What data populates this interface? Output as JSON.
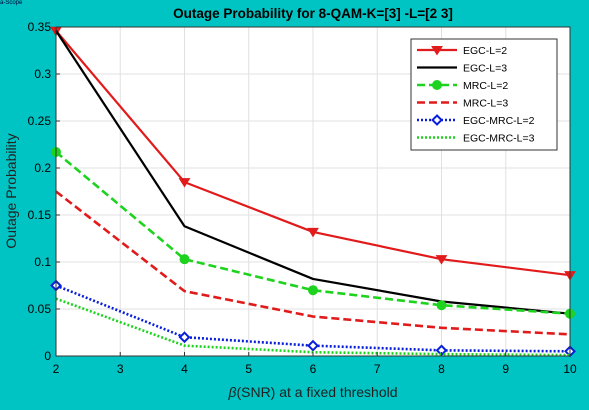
{
  "corner_text": "a-Scope",
  "colors": {
    "background": "#00c3c3",
    "plot": "#ffffff",
    "grid": "#e0e0e0"
  },
  "chart_data": {
    "type": "line",
    "title": "Outage Probability for 8-QAM-K=[3] -L=[2  3]",
    "xlabel_symbol": "β",
    "xlabel_text": "(SNR) at a fixed threshold",
    "ylabel": "Outage Probability",
    "xlim": [
      2,
      10
    ],
    "ylim": [
      0,
      0.35
    ],
    "xticks": [
      2,
      3,
      4,
      5,
      6,
      7,
      8,
      9,
      10
    ],
    "yticks": [
      0,
      0.05,
      0.1,
      0.15,
      0.2,
      0.25,
      0.3,
      0.35
    ],
    "grid": true,
    "legend_position": "top-right",
    "x": [
      2,
      4,
      6,
      8,
      10
    ],
    "series": [
      {
        "name": "EGC-L=2",
        "values": [
          0.346,
          0.185,
          0.132,
          0.103,
          0.086
        ],
        "color": "#e11b1b",
        "dash": "",
        "marker": "triangle-down",
        "width": 2.2
      },
      {
        "name": "EGC-L=3",
        "values": [
          0.346,
          0.138,
          0.082,
          0.058,
          0.045
        ],
        "color": "#000000",
        "dash": "",
        "marker": "none",
        "width": 2.2
      },
      {
        "name": "MRC-L=2",
        "values": [
          0.217,
          0.103,
          0.07,
          0.054,
          0.045
        ],
        "color": "#1ed31e",
        "dash": "8,4",
        "marker": "circle",
        "width": 2.6
      },
      {
        "name": "MRC-L=3",
        "values": [
          0.175,
          0.069,
          0.042,
          0.03,
          0.023
        ],
        "color": "#e11b1b",
        "dash": "8,4",
        "marker": "none",
        "width": 2.6
      },
      {
        "name": "EGC-MRC-L=2",
        "values": [
          0.075,
          0.02,
          0.011,
          0.006,
          0.005
        ],
        "color": "#0a1fd8",
        "dash": "2,2",
        "marker": "diamond",
        "width": 2.6
      },
      {
        "name": "EGC-MRC-L=3",
        "values": [
          0.061,
          0.011,
          0.004,
          0.002,
          0.001
        ],
        "color": "#1ed31e",
        "dash": "2,2",
        "marker": "none",
        "width": 2.6
      }
    ]
  }
}
